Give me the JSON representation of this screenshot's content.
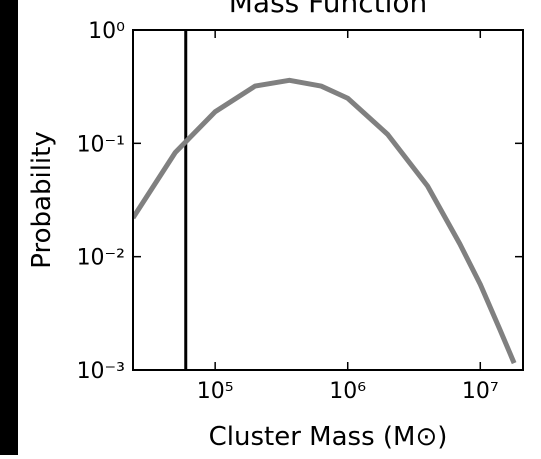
{
  "chart_data": {
    "type": "line",
    "title": "Mass Function",
    "xlabel": "Cluster Mass (M⊙)",
    "ylabel": "Probability",
    "xscale": "log",
    "yscale": "log",
    "x": [
      24000,
      50000,
      100000,
      200000,
      363000,
      630000,
      1000000,
      2000000,
      4000000,
      7000000,
      10000000,
      14000000,
      18000000
    ],
    "series": [
      {
        "color": "#808080",
        "values": [
          0.022,
          0.083,
          0.19,
          0.32,
          0.36,
          0.32,
          0.25,
          0.12,
          0.042,
          0.013,
          0.0057,
          0.0023,
          0.00115
        ]
      }
    ],
    "vline": 60000,
    "vline_color": "#000000",
    "xlim": [
      24000,
      21000000
    ],
    "ylim": [
      0.001,
      1
    ],
    "xticks": [
      {
        "value": 100000,
        "label": "10⁵"
      },
      {
        "value": 1000000,
        "label": "10⁶"
      },
      {
        "value": 10000000,
        "label": "10⁷"
      }
    ],
    "yticks": [
      {
        "value": 1,
        "label": "10⁰"
      },
      {
        "value": 0.1,
        "label": "10⁻¹"
      },
      {
        "value": 0.01,
        "label": "10⁻²"
      },
      {
        "value": 0.001,
        "label": "10⁻³"
      }
    ]
  }
}
